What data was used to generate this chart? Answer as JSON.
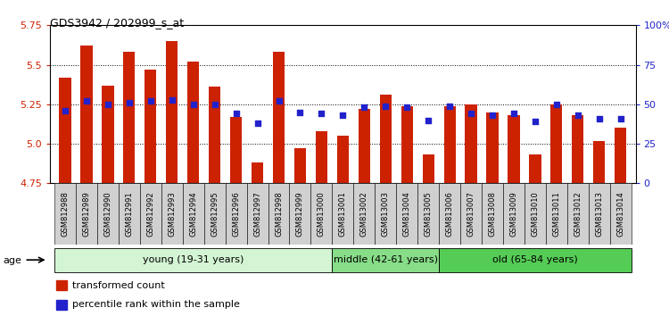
{
  "title": "GDS3942 / 202999_s_at",
  "samples": [
    "GSM812988",
    "GSM812989",
    "GSM812990",
    "GSM812991",
    "GSM812992",
    "GSM812993",
    "GSM812994",
    "GSM812995",
    "GSM812996",
    "GSM812997",
    "GSM812998",
    "GSM812999",
    "GSM813000",
    "GSM813001",
    "GSM813002",
    "GSM813003",
    "GSM813004",
    "GSM813005",
    "GSM813006",
    "GSM813007",
    "GSM813008",
    "GSM813009",
    "GSM813010",
    "GSM813011",
    "GSM813012",
    "GSM813013",
    "GSM813014"
  ],
  "bar_values": [
    5.42,
    5.62,
    5.37,
    5.58,
    5.47,
    5.65,
    5.52,
    5.36,
    5.17,
    4.88,
    5.58,
    4.97,
    5.08,
    5.05,
    5.22,
    5.31,
    5.24,
    4.93,
    5.24,
    5.25,
    5.2,
    5.18,
    4.93,
    5.25,
    5.18,
    5.02,
    5.1
  ],
  "percentile_values": [
    46,
    52,
    50,
    51,
    52,
    53,
    50,
    50,
    44,
    38,
    52,
    45,
    44,
    43,
    48,
    49,
    48,
    40,
    49,
    44,
    43,
    44,
    39,
    50,
    43,
    41,
    41
  ],
  "groups": [
    {
      "label": "young (19-31 years)",
      "start": 0,
      "end": 13,
      "color": "#d4f5d4"
    },
    {
      "label": "middle (42-61 years)",
      "start": 13,
      "end": 18,
      "color": "#88dd88"
    },
    {
      "label": "old (65-84 years)",
      "start": 18,
      "end": 27,
      "color": "#55cc55"
    }
  ],
  "ylim": [
    4.75,
    5.75
  ],
  "yticks": [
    4.75,
    5.0,
    5.25,
    5.5,
    5.75
  ],
  "y2lim": [
    0,
    100
  ],
  "y2ticks": [
    0,
    25,
    50,
    75,
    100
  ],
  "bar_color": "#cc2200",
  "dot_color": "#2222cc",
  "grid_color": "#000000",
  "tick_bg_color": "#d0d0d0",
  "legend_bar": "transformed count",
  "legend_dot": "percentile rank within the sample",
  "age_label": "age"
}
